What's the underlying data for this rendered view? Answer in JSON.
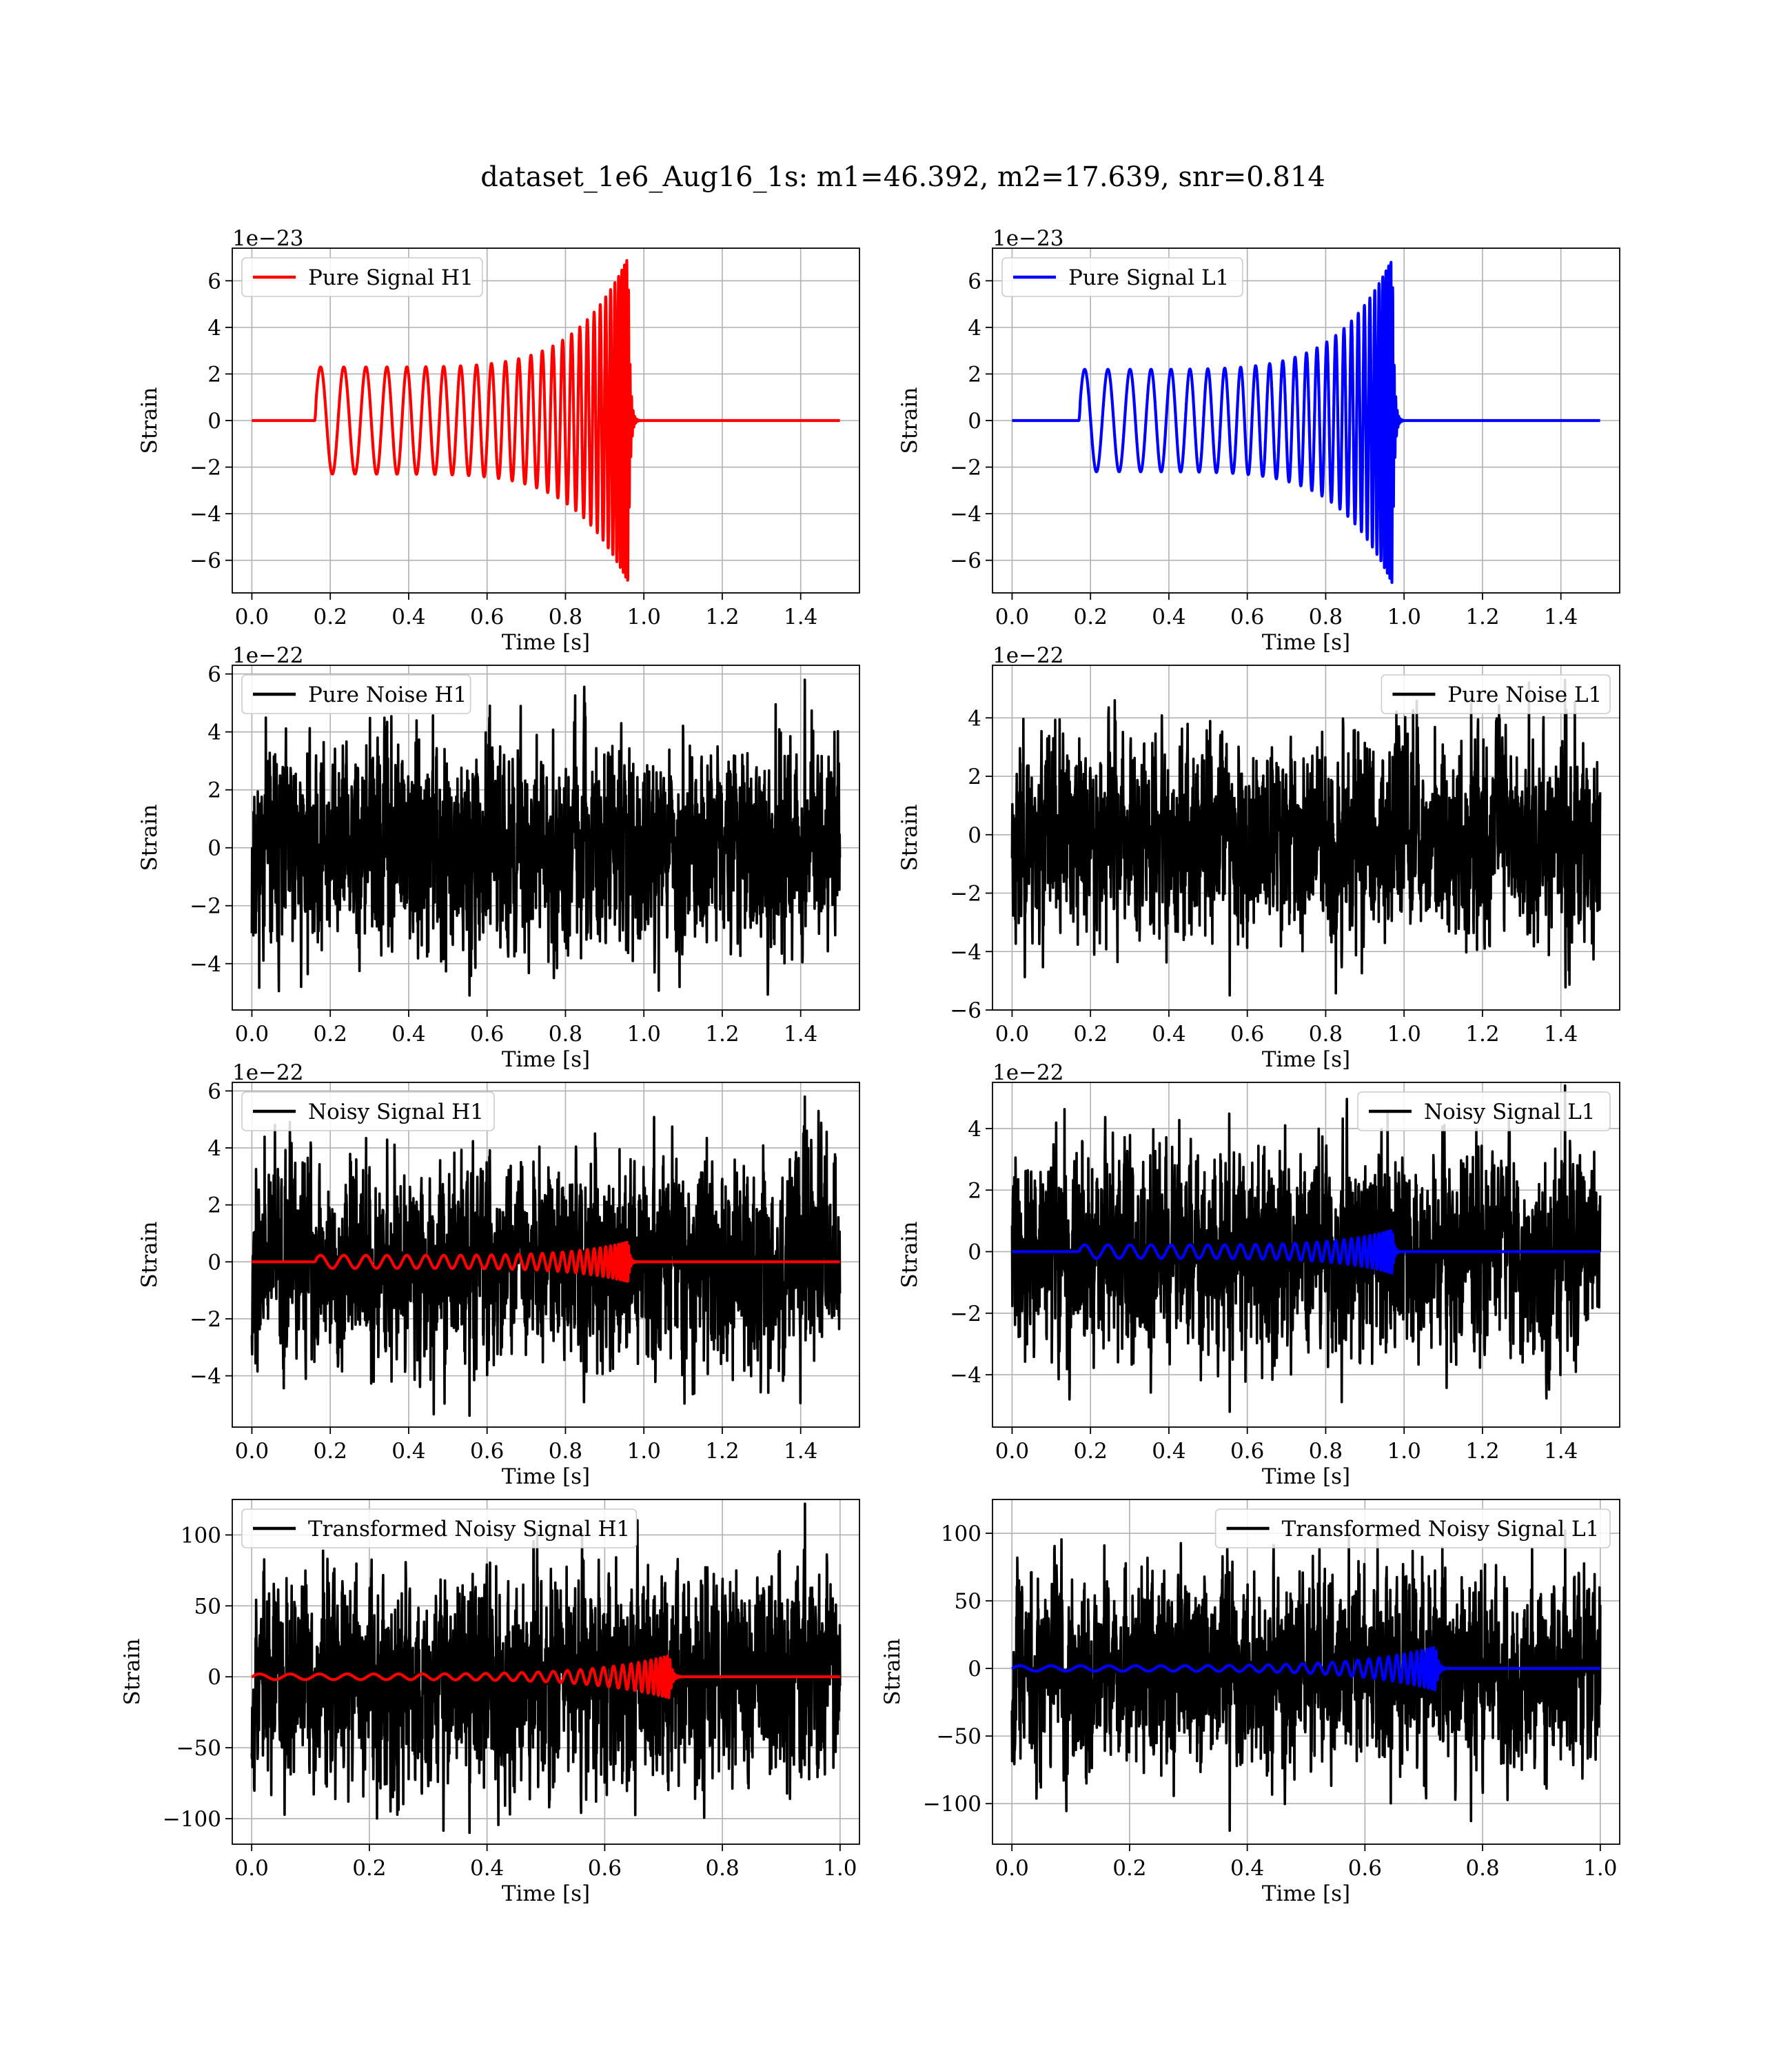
{
  "figure": {
    "title": "dataset_1e6_Aug16_1s: m1=46.392, m2=17.639, snr=0.814"
  },
  "colors": {
    "h1_signal": "#ff0000",
    "l1_signal": "#0000ff",
    "noise": "#000000",
    "grid": "#b0b0b0",
    "axes": "#000000",
    "background": "#ffffff"
  },
  "chart_data": [
    {
      "type": "line",
      "title": "",
      "xlabel": "Time [s]",
      "ylabel": "Strain",
      "offset_text": "1e−23",
      "xlim": [
        -0.05,
        1.55
      ],
      "ylim": [
        -7.4,
        7.4
      ],
      "xticks": [
        "0.0",
        "0.2",
        "0.4",
        "0.6",
        "0.8",
        "1.0",
        "1.2",
        "1.4"
      ],
      "xtick_values": [
        0,
        0.2,
        0.4,
        0.6,
        0.8,
        1.0,
        1.2,
        1.4
      ],
      "yticks": [
        "−6",
        "−4",
        "−2",
        "0",
        "2",
        "4",
        "6"
      ],
      "ytick_values": [
        -6,
        -4,
        -2,
        0,
        2,
        4,
        6
      ],
      "grid": true,
      "legend_position": "upper left",
      "series": [
        {
          "name": "Pure Signal H1",
          "kind": "chirp",
          "color": "#ff0000",
          "x_range": [
            0,
            1.5
          ],
          "onset": 0.16,
          "merger": 0.96,
          "amplitude_start": 2.3,
          "amplitude_peak": 7.0
        }
      ]
    },
    {
      "type": "line",
      "title": "",
      "xlabel": "Time [s]",
      "ylabel": "Strain",
      "offset_text": "1e−23",
      "xlim": [
        -0.05,
        1.55
      ],
      "ylim": [
        -7.4,
        7.4
      ],
      "xticks": [
        "0.0",
        "0.2",
        "0.4",
        "0.6",
        "0.8",
        "1.0",
        "1.2",
        "1.4"
      ],
      "xtick_values": [
        0,
        0.2,
        0.4,
        0.6,
        0.8,
        1.0,
        1.2,
        1.4
      ],
      "yticks": [
        "−6",
        "−4",
        "−2",
        "0",
        "2",
        "4",
        "6"
      ],
      "ytick_values": [
        -6,
        -4,
        -2,
        0,
        2,
        4,
        6
      ],
      "grid": true,
      "legend_position": "upper left",
      "series": [
        {
          "name": "Pure Signal L1",
          "kind": "chirp",
          "color": "#0000ff",
          "x_range": [
            0,
            1.5
          ],
          "onset": 0.17,
          "merger": 0.97,
          "amplitude_start": 2.2,
          "amplitude_peak": 7.0
        }
      ]
    },
    {
      "type": "line",
      "title": "",
      "xlabel": "Time [s]",
      "ylabel": "Strain",
      "offset_text": "1e−22",
      "xlim": [
        -0.05,
        1.55
      ],
      "ylim": [
        -5.6,
        6.3
      ],
      "xticks": [
        "0.0",
        "0.2",
        "0.4",
        "0.6",
        "0.8",
        "1.0",
        "1.2",
        "1.4"
      ],
      "xtick_values": [
        0,
        0.2,
        0.4,
        0.6,
        0.8,
        1.0,
        1.2,
        1.4
      ],
      "yticks": [
        "−4",
        "−2",
        "0",
        "2",
        "4",
        "6"
      ],
      "ytick_values": [
        -4,
        -2,
        0,
        2,
        4,
        6
      ],
      "grid": true,
      "legend_position": "upper left",
      "series": [
        {
          "name": "Pure Noise H1",
          "kind": "noise",
          "color": "#000000",
          "x_range": [
            0,
            1.5
          ],
          "noise_min": -5.1,
          "noise_max": 5.8,
          "seed": 11
        }
      ]
    },
    {
      "type": "line",
      "title": "",
      "xlabel": "Time [s]",
      "ylabel": "Strain",
      "offset_text": "1e−22",
      "xlim": [
        -0.05,
        1.55
      ],
      "ylim": [
        -6.0,
        5.8
      ],
      "xticks": [
        "0.0",
        "0.2",
        "0.4",
        "0.6",
        "0.8",
        "1.0",
        "1.2",
        "1.4"
      ],
      "xtick_values": [
        0,
        0.2,
        0.4,
        0.6,
        0.8,
        1.0,
        1.2,
        1.4
      ],
      "yticks": [
        "−6",
        "−4",
        "−2",
        "0",
        "2",
        "4"
      ],
      "ytick_values": [
        -6,
        -4,
        -2,
        0,
        2,
        4
      ],
      "grid": true,
      "legend_position": "upper right",
      "series": [
        {
          "name": "Pure Noise L1",
          "kind": "noise",
          "color": "#000000",
          "x_range": [
            0,
            1.5
          ],
          "noise_min": -5.5,
          "noise_max": 5.3,
          "seed": 23
        }
      ]
    },
    {
      "type": "line",
      "title": "",
      "xlabel": "Time [s]",
      "ylabel": "Strain",
      "offset_text": "1e−22",
      "xlim": [
        -0.05,
        1.55
      ],
      "ylim": [
        -5.8,
        6.3
      ],
      "xticks": [
        "0.0",
        "0.2",
        "0.4",
        "0.6",
        "0.8",
        "1.0",
        "1.2",
        "1.4"
      ],
      "xtick_values": [
        0,
        0.2,
        0.4,
        0.6,
        0.8,
        1.0,
        1.2,
        1.4
      ],
      "yticks": [
        "−4",
        "−2",
        "0",
        "2",
        "4",
        "6"
      ],
      "ytick_values": [
        -4,
        -2,
        0,
        2,
        4,
        6
      ],
      "grid": true,
      "legend_position": "upper left",
      "series": [
        {
          "name": "Noisy Signal H1",
          "kind": "noise",
          "color": "#000000",
          "x_range": [
            0,
            1.5
          ],
          "noise_min": -5.4,
          "noise_max": 5.8,
          "seed": 37
        },
        {
          "name": "",
          "kind": "chirp",
          "color": "#ff0000",
          "x_range": [
            0,
            1.5
          ],
          "onset": 0.16,
          "merger": 0.96,
          "amplitude_start": 0.23,
          "amplitude_peak": 0.7
        }
      ]
    },
    {
      "type": "line",
      "title": "",
      "xlabel": "Time [s]",
      "ylabel": "Strain",
      "offset_text": "1e−22",
      "xlim": [
        -0.05,
        1.55
      ],
      "ylim": [
        -5.7,
        5.5
      ],
      "xticks": [
        "0.0",
        "0.2",
        "0.4",
        "0.6",
        "0.8",
        "1.0",
        "1.2",
        "1.4"
      ],
      "xtick_values": [
        0,
        0.2,
        0.4,
        0.6,
        0.8,
        1.0,
        1.2,
        1.4
      ],
      "yticks": [
        "−4",
        "−2",
        "0",
        "2",
        "4"
      ],
      "ytick_values": [
        -4,
        -2,
        0,
        2,
        4
      ],
      "grid": true,
      "legend_position": "upper right",
      "series": [
        {
          "name": "Noisy Signal L1",
          "kind": "noise",
          "color": "#000000",
          "x_range": [
            0,
            1.5
          ],
          "noise_min": -5.2,
          "noise_max": 5.4,
          "seed": 41
        },
        {
          "name": "",
          "kind": "chirp",
          "color": "#0000ff",
          "x_range": [
            0,
            1.5
          ],
          "onset": 0.17,
          "merger": 0.97,
          "amplitude_start": 0.22,
          "amplitude_peak": 0.7
        }
      ]
    },
    {
      "type": "line",
      "title": "",
      "xlabel": "Time [s]",
      "ylabel": "Strain",
      "offset_text": "",
      "xlim": [
        -0.033,
        1.033
      ],
      "ylim": [
        -118,
        125
      ],
      "xticks": [
        "0.0",
        "0.2",
        "0.4",
        "0.6",
        "0.8",
        "1.0"
      ],
      "xtick_values": [
        0,
        0.2,
        0.4,
        0.6,
        0.8,
        1.0
      ],
      "yticks": [
        "−100",
        "−50",
        "0",
        "50",
        "100"
      ],
      "ytick_values": [
        -100,
        -50,
        0,
        50,
        100
      ],
      "grid": true,
      "legend_position": "upper left",
      "series": [
        {
          "name": "Transformed Noisy Signal H1",
          "kind": "noise",
          "color": "#000000",
          "x_range": [
            0,
            1.0
          ],
          "noise_min": -110,
          "noise_max": 122,
          "seed": 53
        },
        {
          "name": "",
          "kind": "chirp",
          "color": "#ff0000",
          "x_range": [
            0,
            1.0
          ],
          "onset": 0.0,
          "merger": 0.71,
          "amplitude_start": 2,
          "amplitude_peak": 15
        }
      ]
    },
    {
      "type": "line",
      "title": "",
      "xlabel": "Time [s]",
      "ylabel": "Strain",
      "offset_text": "",
      "xlim": [
        -0.033,
        1.033
      ],
      "ylim": [
        -130,
        125
      ],
      "xticks": [
        "0.0",
        "0.2",
        "0.4",
        "0.6",
        "0.8",
        "1.0"
      ],
      "xtick_values": [
        0,
        0.2,
        0.4,
        0.6,
        0.8,
        1.0
      ],
      "yticks": [
        "−100",
        "−50",
        "0",
        "50",
        "100"
      ],
      "ytick_values": [
        -100,
        -50,
        0,
        50,
        100
      ],
      "grid": true,
      "legend_position": "upper right",
      "series": [
        {
          "name": "Transformed Noisy Signal L1",
          "kind": "noise",
          "color": "#000000",
          "x_range": [
            0,
            1.0
          ],
          "noise_min": -120,
          "noise_max": 102,
          "seed": 67
        },
        {
          "name": "",
          "kind": "chirp",
          "color": "#0000ff",
          "x_range": [
            0,
            1.0
          ],
          "onset": 0.0,
          "merger": 0.72,
          "amplitude_start": 2,
          "amplitude_peak": 16
        }
      ]
    }
  ]
}
